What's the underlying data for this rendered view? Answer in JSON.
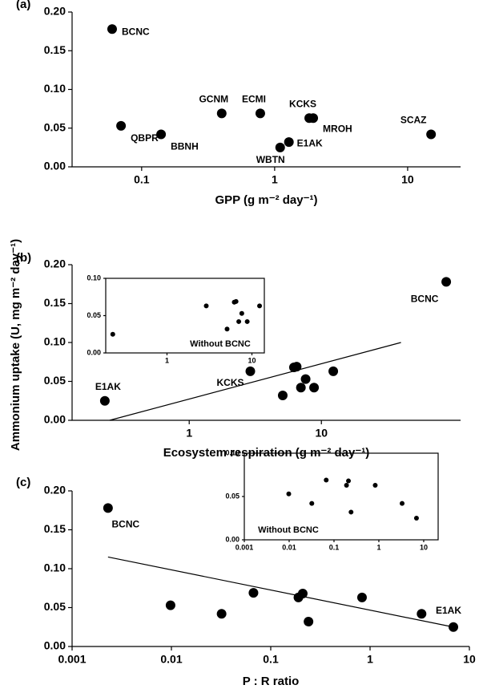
{
  "chart_data": [
    {
      "type": "scatter",
      "panel_label": "(a)",
      "x_label": "GPP (g m⁻² day⁻¹)",
      "xscale": "log",
      "xlim": [
        0.03,
        25
      ],
      "xticks": [
        0.1,
        1,
        10
      ],
      "ylim": [
        0,
        0.2
      ],
      "yticks": [
        {
          "value": 0,
          "label": "0.00"
        },
        {
          "value": 0.05,
          "label": "0.05"
        },
        {
          "value": 0.1,
          "label": "0.10"
        },
        {
          "value": 0.15,
          "label": "0.15"
        },
        {
          "value": 0.2,
          "label": "0.20"
        }
      ],
      "color": "#000000",
      "x": [
        0.06,
        0.07,
        0.14,
        0.4,
        0.78,
        1.1,
        1.28,
        1.82,
        1.95,
        15
      ],
      "values": [
        0.178,
        0.053,
        0.042,
        0.069,
        0.069,
        0.025,
        0.032,
        0.063,
        0.063,
        0.042
      ],
      "point_labels": [
        "BCNC",
        "QBPR",
        "BBNH",
        "GCNM",
        "ECMI",
        "WBTN",
        "E1AK",
        "KCKS",
        "MROH",
        "SCAZ"
      ]
    },
    {
      "type": "scatter",
      "panel_label": "(b)",
      "x_label": "Ecosystem respiration (g m⁻² day⁻¹)",
      "y_label": "Ammonium uptake (U, mg m⁻² day⁻¹)",
      "xscale": "log",
      "xlim": [
        0.13,
        113
      ],
      "xticks": [
        1,
        10
      ],
      "ylim": [
        0,
        0.2
      ],
      "yticks": [
        {
          "value": 0,
          "label": "0.00"
        },
        {
          "value": 0.05,
          "label": "0.05"
        },
        {
          "value": 0.1,
          "label": "0.10"
        },
        {
          "value": 0.15,
          "label": "0.15"
        },
        {
          "value": 0.2,
          "label": "0.20"
        }
      ],
      "color": "#000000",
      "x": [
        0.23,
        2.9,
        5.1,
        6.2,
        6.5,
        7.0,
        7.6,
        8.8,
        12.3,
        88
      ],
      "values": [
        0.025,
        0.063,
        0.032,
        0.068,
        0.069,
        0.042,
        0.053,
        0.042,
        0.063,
        0.178
      ],
      "point_labels": [
        "E1AK",
        "KCKS",
        null,
        null,
        null,
        null,
        null,
        null,
        null,
        "BCNC"
      ],
      "fit": {
        "x": [
          0.25,
          40
        ],
        "y": [
          0,
          0.1
        ]
      }
    },
    {
      "type": "scatter",
      "annotation": "Without BCNC",
      "xscale": "log",
      "xlim": [
        0.19,
        14
      ],
      "xticks": [
        1,
        10
      ],
      "ylim": [
        0,
        0.1
      ],
      "yticks": [
        {
          "value": 0,
          "label": "0.00"
        },
        {
          "value": 0.05,
          "label": "0.05"
        },
        {
          "value": 0.1,
          "label": "0.10"
        }
      ],
      "color": "#000000",
      "x": [
        0.23,
        2.9,
        5.1,
        6.2,
        6.5,
        7.0,
        7.6,
        8.8,
        12.3
      ],
      "values": [
        0.025,
        0.063,
        0.032,
        0.068,
        0.069,
        0.042,
        0.053,
        0.042,
        0.063
      ]
    },
    {
      "type": "scatter",
      "panel_label": "(c)",
      "x_label": "P : R ratio",
      "xscale": "log",
      "xlim": [
        0.001,
        10
      ],
      "xticks": [
        0.001,
        0.01,
        0.1,
        1,
        10
      ],
      "ylim": [
        0,
        0.2
      ],
      "yticks": [
        {
          "value": 0,
          "label": "0.00"
        },
        {
          "value": 0.05,
          "label": "0.05"
        },
        {
          "value": 0.1,
          "label": "0.10"
        },
        {
          "value": 0.15,
          "label": "0.15"
        },
        {
          "value": 0.2,
          "label": "0.20"
        }
      ],
      "color": "#000000",
      "x": [
        0.0023,
        0.0098,
        0.032,
        0.067,
        0.19,
        0.21,
        0.24,
        0.83,
        3.3,
        6.9
      ],
      "values": [
        0.178,
        0.053,
        0.042,
        0.069,
        0.063,
        0.068,
        0.032,
        0.063,
        0.042,
        0.025
      ],
      "point_labels": [
        "BCNC",
        null,
        null,
        null,
        null,
        null,
        null,
        null,
        null,
        "E1AK"
      ],
      "fit": {
        "x": [
          0.0023,
          6.9
        ],
        "y": [
          0.115,
          0.025
        ]
      }
    },
    {
      "type": "scatter",
      "annotation": "Without BCNC",
      "xscale": "log",
      "xlim": [
        0.001,
        21
      ],
      "xticks": [
        0.001,
        0.01,
        0.1,
        1,
        10
      ],
      "ylim": [
        0,
        0.1
      ],
      "yticks": [
        {
          "value": 0,
          "label": "0.00"
        },
        {
          "value": 0.05,
          "label": "0.05"
        },
        {
          "value": 0.1,
          "label": "0.10"
        }
      ],
      "color": "#000000",
      "x": [
        0.0098,
        0.032,
        0.067,
        0.19,
        0.21,
        0.24,
        0.83,
        3.3,
        6.9
      ],
      "values": [
        0.053,
        0.042,
        0.069,
        0.063,
        0.068,
        0.032,
        0.063,
        0.042,
        0.025
      ]
    }
  ]
}
